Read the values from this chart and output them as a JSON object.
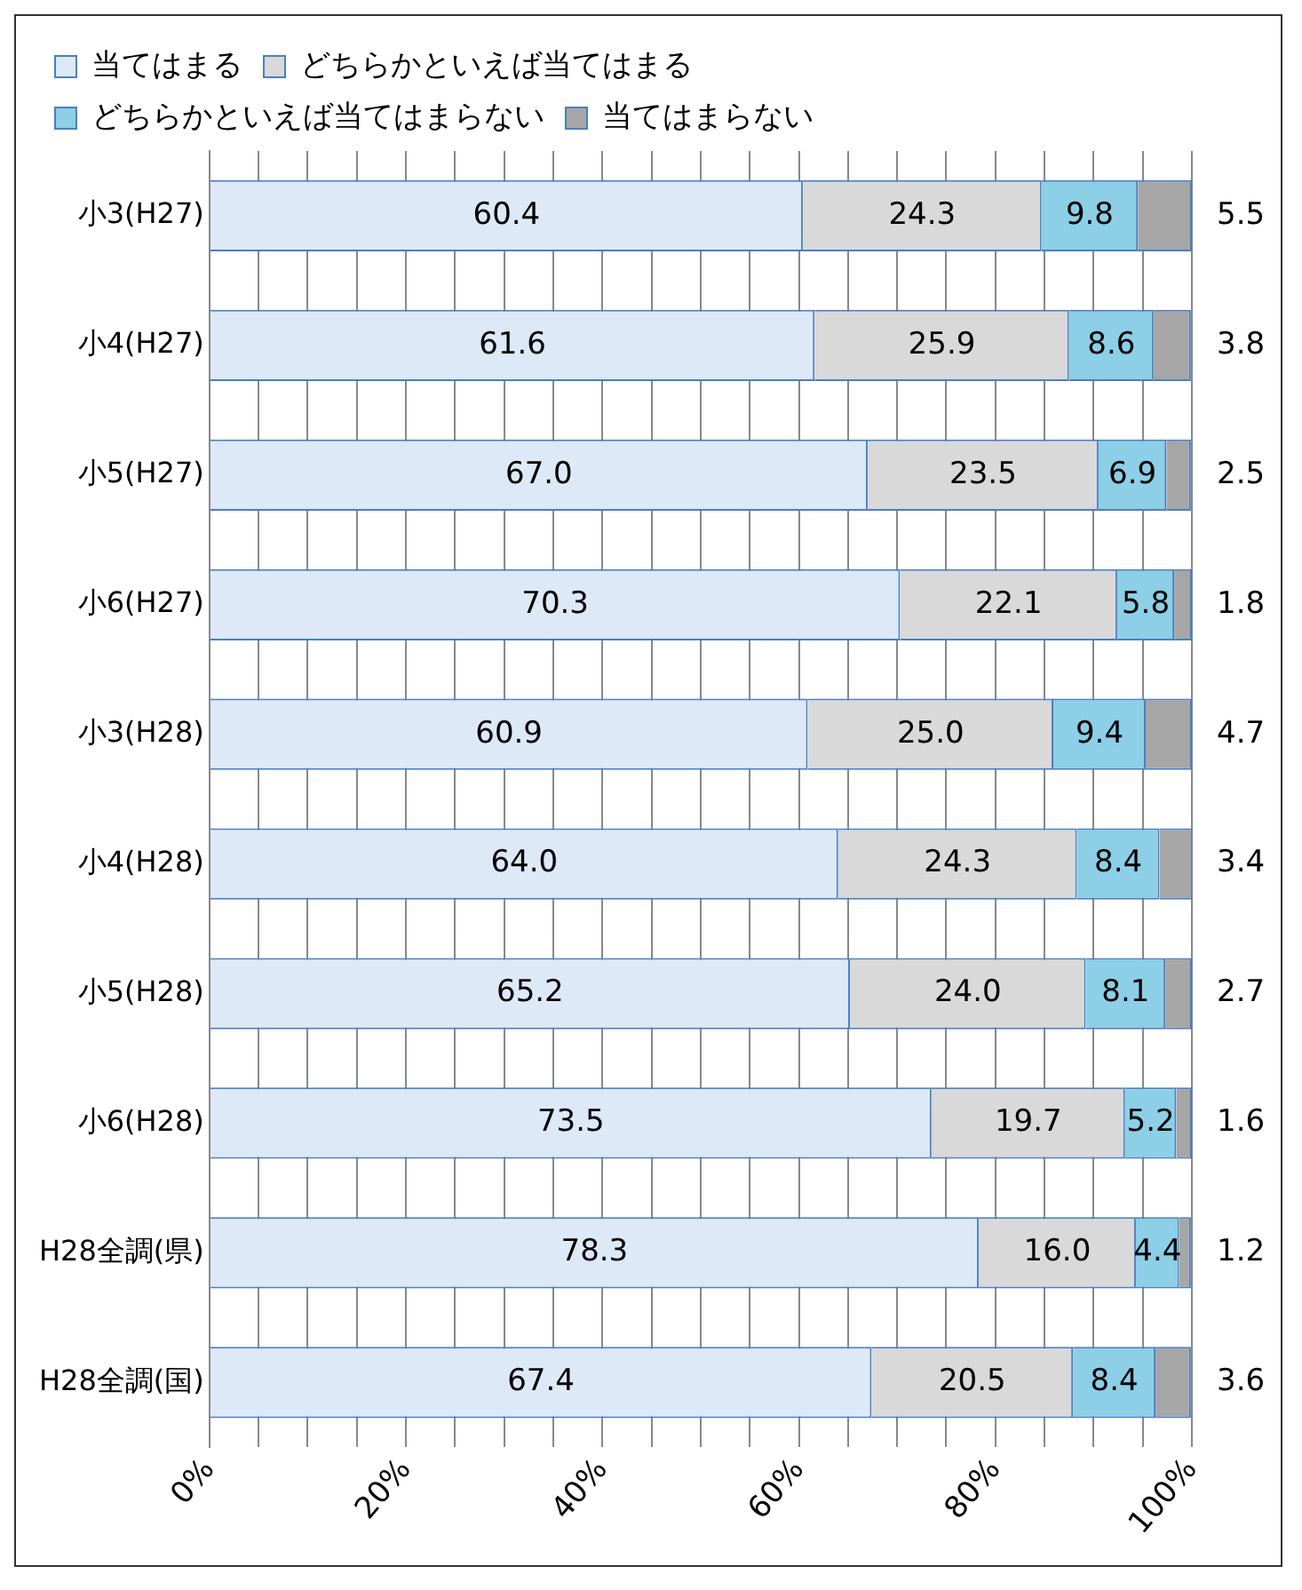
{
  "chart_data": {
    "type": "bar",
    "orientation": "horizontal",
    "stacked": true,
    "categories": [
      "小3(H27)",
      "小4(H27)",
      "小5(H27)",
      "小6(H27)",
      "小3(H28)",
      "小4(H28)",
      "小5(H28)",
      "小6(H28)",
      "H28全調(県)",
      "H28全調(国)"
    ],
    "series": [
      {
        "name": "当てはまる",
        "color": "#dde9f7",
        "values": [
          60.4,
          61.6,
          67.0,
          70.3,
          60.9,
          64.0,
          65.2,
          73.5,
          78.3,
          67.4
        ],
        "value_labels": [
          "60.4",
          "61.6",
          "67.0",
          "70.3",
          "60.9",
          "64.0",
          "65.2",
          "73.5",
          "78.3",
          "67.4"
        ]
      },
      {
        "name": "どちらかといえば当てはまる",
        "color": "#d9d9d9",
        "values": [
          24.3,
          25.9,
          23.5,
          22.1,
          25.0,
          24.3,
          24.0,
          19.7,
          16.0,
          20.5
        ],
        "value_labels": [
          "24.3",
          "25.9",
          "23.5",
          "22.1",
          "25.0",
          "24.3",
          "24.0",
          "19.7",
          "16.0",
          "20.5"
        ]
      },
      {
        "name": "どちらかといえば当てはまらない",
        "color": "#8ccfe6",
        "values": [
          9.8,
          8.6,
          6.9,
          5.8,
          9.4,
          8.4,
          8.1,
          5.2,
          4.4,
          8.4
        ],
        "value_labels": [
          "9.8",
          "8.6",
          "6.9",
          "5.8",
          "9.4",
          "8.4",
          "8.1",
          "5.2",
          "4.4",
          "8.4"
        ]
      },
      {
        "name": "当てはまらない",
        "color": "#a6a6a6",
        "values": [
          5.5,
          3.8,
          2.5,
          1.8,
          4.7,
          3.4,
          2.7,
          1.6,
          1.2,
          3.6
        ],
        "value_labels": [
          "5.5",
          "3.8",
          "2.5",
          "1.8",
          "4.7",
          "3.4",
          "2.7",
          "1.6",
          "1.2",
          "3.6"
        ]
      }
    ],
    "xlim": [
      0,
      100
    ],
    "xticks": [
      {
        "value": 0,
        "label": "0%"
      },
      {
        "value": 5,
        "label": null
      },
      {
        "value": 10,
        "label": null
      },
      {
        "value": 15,
        "label": null
      },
      {
        "value": 20,
        "label": "20%"
      },
      {
        "value": 25,
        "label": null
      },
      {
        "value": 30,
        "label": null
      },
      {
        "value": 35,
        "label": null
      },
      {
        "value": 40,
        "label": "40%"
      },
      {
        "value": 45,
        "label": null
      },
      {
        "value": 50,
        "label": null
      },
      {
        "value": 55,
        "label": null
      },
      {
        "value": 60,
        "label": "60%"
      },
      {
        "value": 65,
        "label": null
      },
      {
        "value": 70,
        "label": null
      },
      {
        "value": 75,
        "label": null
      },
      {
        "value": 80,
        "label": "80%"
      },
      {
        "value": 85,
        "label": null
      },
      {
        "value": 90,
        "label": null
      },
      {
        "value": 95,
        "label": null
      },
      {
        "value": 100,
        "label": "100%"
      }
    ],
    "grid": "x",
    "legend": "top"
  }
}
